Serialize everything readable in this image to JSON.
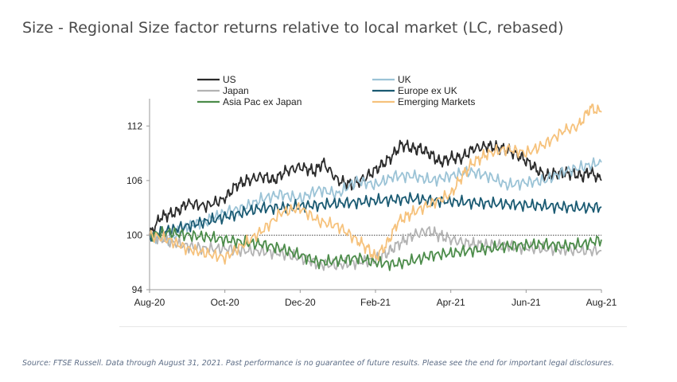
{
  "title": "Size - Regional Size factor returns relative to local market (LC, rebased)",
  "source": "Source: FTSE Russell. Data through August 31, 2021. Past performance is no guarantee of future results. Please see the end for important legal disclosures.",
  "chart_data": {
    "type": "line",
    "xlim": [
      0,
      12
    ],
    "ylim": [
      94,
      115
    ],
    "x_ticks": [
      0,
      2,
      4,
      6,
      8,
      10,
      12
    ],
    "x_tick_labels": [
      "Aug-20",
      "Oct-20",
      "Dec-20",
      "Feb-21",
      "Apr-21",
      "Jun-21",
      "Aug-21"
    ],
    "y_ticks": [
      94,
      100,
      106,
      112
    ],
    "y_tick_labels": [
      "94",
      "100",
      "106",
      "112"
    ],
    "reference_line": 100,
    "legend": "top, two columns",
    "series": [
      {
        "name": "US",
        "color": "#2b2b2b",
        "points": [
          [
            0,
            100
          ],
          [
            0.3,
            102
          ],
          [
            0.7,
            102.5
          ],
          [
            1,
            103.5
          ],
          [
            1.5,
            103.2
          ],
          [
            2,
            104
          ],
          [
            2.3,
            105.5
          ],
          [
            2.6,
            106
          ],
          [
            3,
            106.5
          ],
          [
            3.3,
            106
          ],
          [
            3.6,
            107
          ],
          [
            4,
            107.5
          ],
          [
            4.4,
            107
          ],
          [
            4.6,
            108
          ],
          [
            5,
            106
          ],
          [
            5.4,
            105.5
          ],
          [
            5.8,
            106.5
          ],
          [
            6.1,
            107.5
          ],
          [
            6.4,
            108.5
          ],
          [
            6.7,
            110
          ],
          [
            7,
            109.5
          ],
          [
            7.2,
            109.5
          ],
          [
            7.5,
            108.8
          ],
          [
            7.7,
            108
          ],
          [
            8,
            108.5
          ],
          [
            8.3,
            108.5
          ],
          [
            8.6,
            109.5
          ],
          [
            9,
            109.8
          ],
          [
            9.3,
            109.6
          ],
          [
            9.6,
            109.2
          ],
          [
            9.9,
            108.5
          ],
          [
            10.2,
            107.5
          ],
          [
            10.5,
            106.5
          ],
          [
            10.8,
            106.8
          ],
          [
            11.2,
            106.8
          ],
          [
            11.5,
            106.5
          ],
          [
            11.7,
            107
          ],
          [
            12,
            106
          ]
        ]
      },
      {
        "name": "UK",
        "color": "#9bc3d6",
        "points": [
          [
            0,
            100
          ],
          [
            0.5,
            99.5
          ],
          [
            1,
            101
          ],
          [
            1.5,
            101.5
          ],
          [
            2,
            102.5
          ],
          [
            2.5,
            103
          ],
          [
            3,
            104
          ],
          [
            3.5,
            104.5
          ],
          [
            4,
            104
          ],
          [
            4.5,
            105
          ],
          [
            5,
            104.5
          ],
          [
            5.5,
            106
          ],
          [
            6,
            105.5
          ],
          [
            6.5,
            106.5
          ],
          [
            7,
            106.5
          ],
          [
            7.5,
            106
          ],
          [
            8,
            106.5
          ],
          [
            8.5,
            107
          ],
          [
            9,
            106.5
          ],
          [
            9.5,
            105.5
          ],
          [
            10,
            105.8
          ],
          [
            10.5,
            106
          ],
          [
            11,
            107
          ],
          [
            11.5,
            107.5
          ],
          [
            12,
            108
          ]
        ]
      },
      {
        "name": "Japan",
        "color": "#b3b3b3",
        "points": [
          [
            0,
            100
          ],
          [
            0.5,
            99.3
          ],
          [
            1,
            98.8
          ],
          [
            1.5,
            98.5
          ],
          [
            2,
            98.5
          ],
          [
            2.5,
            98.3
          ],
          [
            3,
            98.2
          ],
          [
            3.5,
            98
          ],
          [
            4,
            97.5
          ],
          [
            4.5,
            96.8
          ],
          [
            5,
            96.7
          ],
          [
            5.5,
            97
          ],
          [
            6,
            97.3
          ],
          [
            6.3,
            98
          ],
          [
            6.6,
            99
          ],
          [
            7,
            100
          ],
          [
            7.4,
            100.5
          ],
          [
            7.8,
            99.8
          ],
          [
            8.2,
            99.3
          ],
          [
            8.6,
            99
          ],
          [
            9,
            98.9
          ],
          [
            9.5,
            98.8
          ],
          [
            10,
            98.6
          ],
          [
            10.5,
            98.5
          ],
          [
            11,
            98.4
          ],
          [
            11.5,
            98.3
          ],
          [
            12,
            98.3
          ]
        ]
      },
      {
        "name": "Europe ex UK",
        "color": "#1a5a72",
        "points": [
          [
            0,
            100
          ],
          [
            0.5,
            100.5
          ],
          [
            1,
            101
          ],
          [
            1.5,
            101.5
          ],
          [
            2,
            102
          ],
          [
            2.5,
            102.5
          ],
          [
            3,
            103
          ],
          [
            3.5,
            103
          ],
          [
            4,
            103.2
          ],
          [
            4.5,
            103.3
          ],
          [
            5,
            103.5
          ],
          [
            5.5,
            103.6
          ],
          [
            6,
            103.8
          ],
          [
            6.5,
            103.9
          ],
          [
            7,
            104
          ],
          [
            7.5,
            103.8
          ],
          [
            8,
            103.7
          ],
          [
            8.5,
            103.6
          ],
          [
            9,
            103.5
          ],
          [
            9.5,
            103.4
          ],
          [
            10,
            103.3
          ],
          [
            10.5,
            103.2
          ],
          [
            11,
            103.1
          ],
          [
            11.5,
            103
          ],
          [
            12,
            103.1
          ]
        ]
      },
      {
        "name": "Asia Pac ex Japan",
        "color": "#4c8c4a",
        "points": [
          [
            0,
            100
          ],
          [
            0.5,
            100.3
          ],
          [
            1,
            100
          ],
          [
            1.5,
            99.8
          ],
          [
            2,
            99.5
          ],
          [
            2.5,
            99.2
          ],
          [
            3,
            99
          ],
          [
            3.5,
            98.5
          ],
          [
            4,
            97.8
          ],
          [
            4.5,
            97
          ],
          [
            5,
            97.2
          ],
          [
            5.5,
            97.5
          ],
          [
            6,
            97
          ],
          [
            6.5,
            96.8
          ],
          [
            7,
            97.2
          ],
          [
            7.5,
            97.8
          ],
          [
            8,
            98
          ],
          [
            8.5,
            98.3
          ],
          [
            9,
            98.5
          ],
          [
            9.5,
            98.8
          ],
          [
            10,
            98.9
          ],
          [
            10.5,
            99
          ],
          [
            11,
            98.8
          ],
          [
            11.5,
            99
          ],
          [
            12,
            99.5
          ]
        ]
      },
      {
        "name": "Emerging Markets",
        "color": "#f6c27c",
        "points": [
          [
            0,
            100
          ],
          [
            0.5,
            99.5
          ],
          [
            1,
            98.5
          ],
          [
            1.5,
            98
          ],
          [
            2,
            97.5
          ],
          [
            2.5,
            99
          ],
          [
            3,
            100.5
          ],
          [
            3.5,
            102.5
          ],
          [
            4,
            103
          ],
          [
            4.5,
            101.5
          ],
          [
            5,
            101
          ],
          [
            5.5,
            99.5
          ],
          [
            5.8,
            98.5
          ],
          [
            6,
            97.5
          ],
          [
            6.3,
            99
          ],
          [
            6.6,
            101.5
          ],
          [
            7,
            102.5
          ],
          [
            7.5,
            103.5
          ],
          [
            8,
            104.5
          ],
          [
            8.3,
            106.5
          ],
          [
            8.6,
            108
          ],
          [
            9,
            109
          ],
          [
            9.5,
            109.5
          ],
          [
            10,
            109
          ],
          [
            10.5,
            110
          ],
          [
            11,
            111.5
          ],
          [
            11.4,
            112
          ],
          [
            11.7,
            114
          ],
          [
            12,
            113.5
          ]
        ]
      }
    ]
  }
}
